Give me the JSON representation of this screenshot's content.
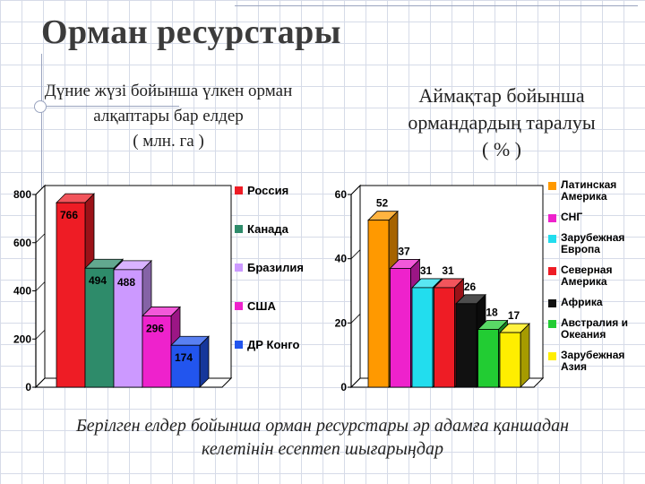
{
  "title": "Орман ресурстары",
  "left_subtitle": [
    "Дүние жүзі бойынша үлкен орман",
    "алқаптары бар елдер",
    "( млн.  га )"
  ],
  "right_subtitle": [
    "Аймақтар бойынша",
    "ормандардың таралуы",
    "( % )"
  ],
  "footer": [
    "Берілген елдер бойынша орман ресурстары әр адамға қаншадан",
    "келетінін есептеп шығарыңдар"
  ],
  "chart_data": [
    {
      "type": "bar",
      "ylim": [
        0,
        800
      ],
      "yticks": [
        "0",
        "200",
        "400",
        "600",
        "800"
      ],
      "series": [
        {
          "name": "Россия",
          "value": 766,
          "label": "766",
          "color": "#ee1c25"
        },
        {
          "name": "Канада",
          "value": 494,
          "label": "494",
          "color": "#2e8b6a"
        },
        {
          "name": "Бразилия",
          "value": 488,
          "label": "488",
          "color": "#cc99ff"
        },
        {
          "name": "США",
          "value": 296,
          "label": "296",
          "color": "#ee22cc"
        },
        {
          "name": "ДР Конго",
          "value": 174,
          "label": "174",
          "color": "#2255ee"
        }
      ]
    },
    {
      "type": "bar",
      "ylim": [
        0,
        60
      ],
      "yticks": [
        "0",
        "20",
        "40",
        "60"
      ],
      "series": [
        {
          "name": "Латинская\nАмерика",
          "value": 52,
          "label": "52",
          "color": "#ff9900"
        },
        {
          "name": "СНГ",
          "value": 37,
          "label": "37",
          "color": "#ee22cc"
        },
        {
          "name": "Зарубежная\nЕвропа",
          "value": 31,
          "label": "31",
          "color": "#22ddee"
        },
        {
          "name": "Северная\nАмерика",
          "value": 31,
          "label": "31",
          "color": "#ee1c25"
        },
        {
          "name": "Африка",
          "value": 26,
          "label": "26",
          "color": "#111111"
        },
        {
          "name": "Австралия и\nОкеания",
          "value": 18,
          "label": "18",
          "color": "#22cc33"
        },
        {
          "name": "Зарубежная\nАзия",
          "value": 17,
          "label": "17",
          "color": "#ffee00"
        }
      ]
    }
  ]
}
